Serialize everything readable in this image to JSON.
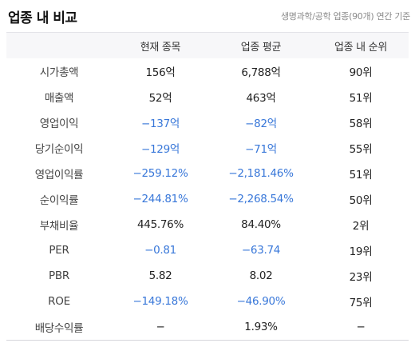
{
  "header": {
    "title": "업종 내 비교",
    "subtitle": "생명과학/공학 업종(90개) 연간 기준"
  },
  "table": {
    "columns": [
      "",
      "현재 종목",
      "업종 평균",
      "업종 내 순위"
    ],
    "rows": [
      {
        "label": "시가총액",
        "current": "156억",
        "average": "6,788억",
        "rank": "90위"
      },
      {
        "label": "매출액",
        "current": "52억",
        "average": "463억",
        "rank": "51위"
      },
      {
        "label": "영업이익",
        "current": "−137억",
        "average": "−82억",
        "rank": "58위"
      },
      {
        "label": "당기순이익",
        "current": "−129억",
        "average": "−71억",
        "rank": "55위"
      },
      {
        "label": "영업이익률",
        "current": "−259.12%",
        "average": "−2,181.46%",
        "rank": "51위"
      },
      {
        "label": "순이익률",
        "current": "−244.81%",
        "average": "−2,268.54%",
        "rank": "50위"
      },
      {
        "label": "부채비율",
        "current": "445.76%",
        "average": "84.40%",
        "rank": "2위"
      },
      {
        "label": "PER",
        "current": "−0.81",
        "average": "−63.74",
        "rank": "19위"
      },
      {
        "label": "PBR",
        "current": "5.82",
        "average": "8.02",
        "rank": "23위"
      },
      {
        "label": "ROE",
        "current": "−149.18%",
        "average": "−46.90%",
        "rank": "75위"
      },
      {
        "label": "배당수익률",
        "current": "−",
        "average": "1.93%",
        "rank": "−"
      }
    ]
  },
  "colors": {
    "negative": "#3877d9",
    "header_bg": "#f7f7f9",
    "text": "#222222"
  }
}
